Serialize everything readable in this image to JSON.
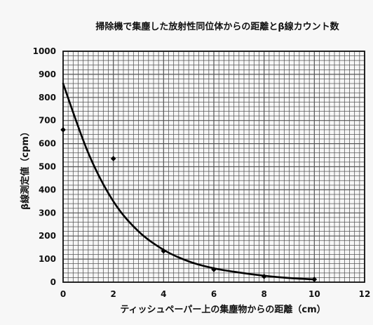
{
  "chart_data": {
    "type": "scatter",
    "title": "掃除機で集塵した放射性同位体からの距離とβ線カウント数",
    "xlabel": "ティッシュペーパー上の集塵物からの距離（cm）",
    "ylabel": "β線測定値（cpm）",
    "xlim": [
      0,
      12
    ],
    "ylim": [
      0,
      1000
    ],
    "x_ticks": [
      0,
      2,
      4,
      6,
      8,
      10,
      12
    ],
    "y_ticks": [
      0,
      100,
      200,
      300,
      400,
      500,
      600,
      700,
      800,
      900,
      1000
    ],
    "grid": true,
    "series": [
      {
        "points": [
          {
            "x": 0,
            "y": 660
          },
          {
            "x": 2,
            "y": 535
          },
          {
            "x": 4,
            "y": 135
          },
          {
            "x": 6,
            "y": 55
          },
          {
            "x": 8,
            "y": 25
          },
          {
            "x": 10,
            "y": 12
          }
        ]
      }
    ],
    "trendline": {
      "type": "smooth",
      "points": [
        {
          "x": 0,
          "y": 860
        },
        {
          "x": 1,
          "y": 560
        },
        {
          "x": 2,
          "y": 350
        },
        {
          "x": 3,
          "y": 220
        },
        {
          "x": 4,
          "y": 140
        },
        {
          "x": 5,
          "y": 90
        },
        {
          "x": 6,
          "y": 60
        },
        {
          "x": 7,
          "y": 42
        },
        {
          "x": 8,
          "y": 28
        },
        {
          "x": 9,
          "y": 18
        },
        {
          "x": 10,
          "y": 12
        }
      ]
    }
  }
}
